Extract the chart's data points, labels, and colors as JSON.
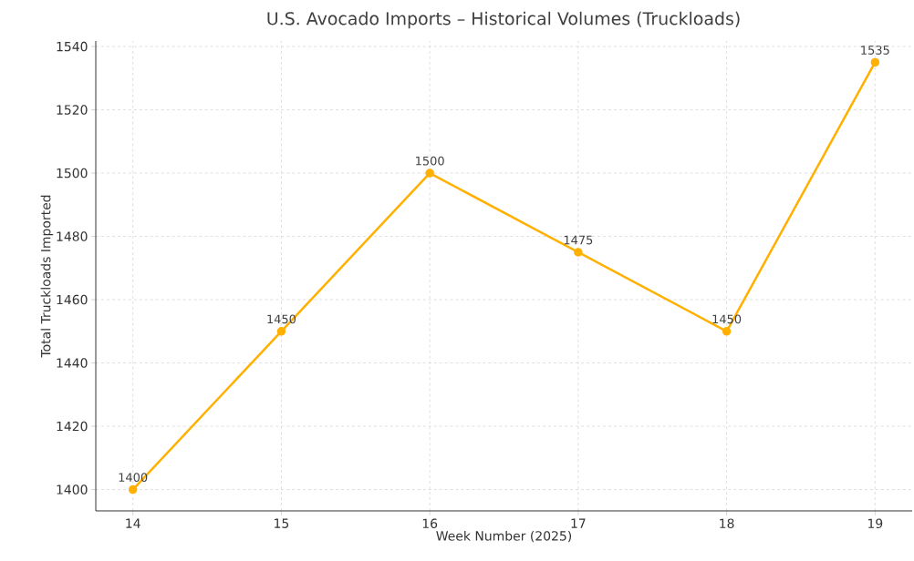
{
  "chart_data": {
    "type": "line",
    "title": "U.S. Avocado Imports – Historical Volumes (Truckloads)",
    "xlabel": "Week Number (2025)",
    "ylabel": "Total Truckloads Imported",
    "x": [
      14,
      15,
      16,
      17,
      18,
      19
    ],
    "series": [
      {
        "color": "#ffb000",
        "values": [
          1400,
          1450,
          1500,
          1475,
          1450,
          1535
        ]
      }
    ],
    "xlim": [
      13.75,
      19.25
    ],
    "ylim": [
      1393.25,
      1541.75
    ],
    "xticks": [
      14,
      15,
      16,
      17,
      18,
      19
    ],
    "yticks": [
      1400,
      1420,
      1440,
      1460,
      1480,
      1500,
      1520,
      1540
    ],
    "grid": true,
    "marker": "circle",
    "line_style": "solid",
    "data_labels": true
  }
}
